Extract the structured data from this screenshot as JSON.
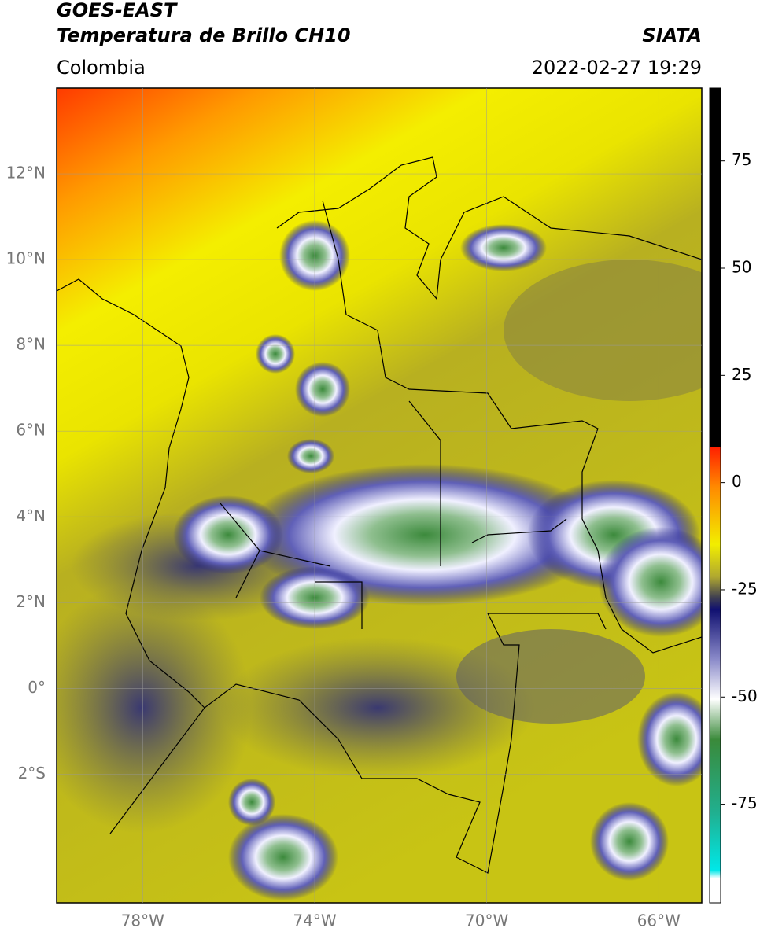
{
  "header": {
    "title": "GOES-EAST",
    "subtitle": "Temperatura de Brillo CH10",
    "source": "SIATA",
    "region": "Colombia",
    "datetime": "2022-02-27 19:29"
  },
  "map": {
    "xlim": [
      -80,
      -65
    ],
    "ylim": [
      -5,
      14
    ],
    "xticks": [
      {
        "value": -78,
        "label": "78°W"
      },
      {
        "value": -74,
        "label": "74°W"
      },
      {
        "value": -70,
        "label": "70°W"
      },
      {
        "value": -66,
        "label": "66°W"
      }
    ],
    "yticks": [
      {
        "value": 12,
        "label": "12°N"
      },
      {
        "value": 10,
        "label": "10°N"
      },
      {
        "value": 8,
        "label": "8°N"
      },
      {
        "value": 6,
        "label": "6°N"
      },
      {
        "value": 4,
        "label": "4°N"
      },
      {
        "value": 2,
        "label": "2°N"
      },
      {
        "value": 0,
        "label": "0°"
      },
      {
        "value": -2,
        "label": "2°S"
      }
    ],
    "grid": true
  },
  "colorbar": {
    "ylim": [
      -98,
      92
    ],
    "yticks": [
      75,
      50,
      25,
      0,
      -25,
      -50,
      -75
    ]
  }
}
